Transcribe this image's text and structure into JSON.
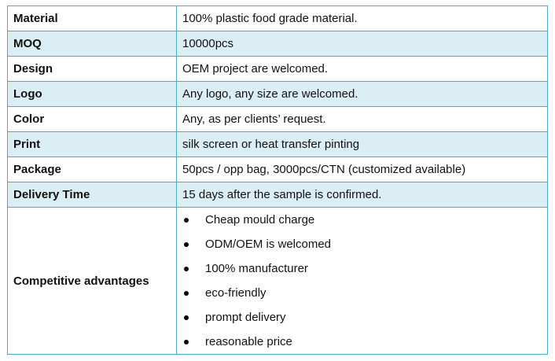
{
  "rows": [
    {
      "label": "Material",
      "value": "100% plastic food grade material."
    },
    {
      "label": "MOQ",
      "value": "10000pcs"
    },
    {
      "label": "Design",
      "value": "OEM project are welcomed."
    },
    {
      "label": "Logo",
      "value": "Any logo, any size are welcomed."
    },
    {
      "label": "Color",
      "value": "Any, as per clients’ request."
    },
    {
      "label": "Print",
      "value": "silk screen or heat transfer pinting"
    },
    {
      "label": "Package",
      "value": "50pcs / opp bag, 3000pcs/CTN (customized available)"
    },
    {
      "label": "Delivery Time",
      "value": "15 days after the sample is confirmed."
    }
  ],
  "advantages": {
    "label": "Competitive advantages",
    "items": [
      "Cheap mould charge",
      "ODM/OEM is welcomed",
      "100% manufacturer",
      "eco-friendly",
      "prompt delivery",
      "reasonable price"
    ]
  },
  "colors": {
    "border": "#4bacc6",
    "shaded_row": "#daeef3"
  }
}
